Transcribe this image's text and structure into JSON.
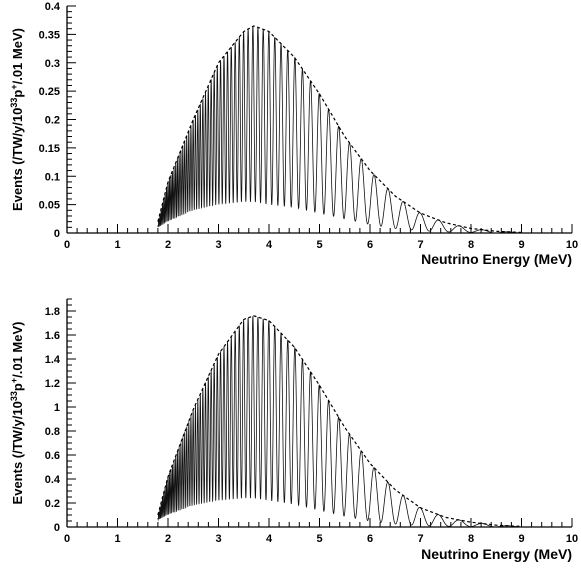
{
  "chart_data": [
    {
      "type": "line",
      "xlabel": "Neutrino Energy (MeV)",
      "ylabel": "Events (/TW/y/10^33p^+/.01 MeV)",
      "xlim": [
        0,
        10
      ],
      "ylim": [
        0,
        0.4
      ],
      "x_ticks": [
        "0",
        "1",
        "2",
        "3",
        "4",
        "5",
        "6",
        "7",
        "8",
        "9",
        "10"
      ],
      "y_ticks": [
        "0",
        "0.05",
        "0.1",
        "0.15",
        "0.2",
        "0.25",
        "0.3",
        "0.35",
        "0.4"
      ],
      "grid": false,
      "series": [
        {
          "style": "dashed envelope",
          "x": [
            1.8,
            2.0,
            2.5,
            3.0,
            3.5,
            3.7,
            4.0,
            4.5,
            5.0,
            5.5,
            6.0,
            6.5,
            7.0,
            7.5,
            8.0,
            8.5,
            9.0
          ],
          "y": [
            0.02,
            0.09,
            0.2,
            0.3,
            0.355,
            0.365,
            0.355,
            0.31,
            0.245,
            0.17,
            0.11,
            0.065,
            0.035,
            0.018,
            0.008,
            0.003,
            0.001
          ]
        },
        {
          "style": "oscillating spectrum",
          "x": [
            1.8,
            2.0,
            2.5,
            3.0,
            3.5,
            3.7,
            4.0,
            4.5,
            5.0,
            5.5,
            6.0,
            6.5,
            7.0,
            7.5,
            8.0,
            8.5,
            9.0
          ],
          "y_min": [
            0.01,
            0.02,
            0.04,
            0.05,
            0.055,
            0.055,
            0.05,
            0.045,
            0.035,
            0.025,
            0.015,
            0.008,
            0.004,
            0.002,
            0.001,
            0.0,
            0.0
          ]
        }
      ]
    },
    {
      "type": "line",
      "xlabel": "Neutrino Energy (MeV)",
      "ylabel": "Events (/TW/y/10^33p^+/.01 MeV)",
      "xlim": [
        0,
        10
      ],
      "ylim": [
        0,
        1.9
      ],
      "x_ticks": [
        "0",
        "1",
        "2",
        "3",
        "4",
        "5",
        "6",
        "7",
        "8",
        "9",
        "10"
      ],
      "y_ticks": [
        "0",
        "0.2",
        "0.4",
        "0.6",
        "0.8",
        "1",
        "1.2",
        "1.4",
        "1.6",
        "1.8"
      ],
      "grid": false,
      "series": [
        {
          "style": "dashed envelope",
          "x": [
            1.8,
            2.0,
            2.5,
            3.0,
            3.5,
            3.7,
            4.0,
            4.5,
            5.0,
            5.5,
            6.0,
            6.5,
            7.0,
            7.5,
            8.0,
            8.5,
            9.0
          ],
          "y": [
            0.1,
            0.42,
            0.98,
            1.44,
            1.73,
            1.76,
            1.72,
            1.5,
            1.18,
            0.83,
            0.53,
            0.31,
            0.16,
            0.08,
            0.04,
            0.015,
            0.005
          ]
        },
        {
          "style": "oscillating spectrum",
          "x": [
            1.8,
            2.0,
            2.5,
            3.0,
            3.5,
            3.7,
            4.0,
            4.5,
            5.0,
            5.5,
            6.0,
            6.5,
            7.0,
            7.5,
            8.0,
            8.5,
            9.0
          ],
          "y_min": [
            0.06,
            0.1,
            0.18,
            0.22,
            0.24,
            0.24,
            0.22,
            0.19,
            0.14,
            0.09,
            0.05,
            0.025,
            0.012,
            0.006,
            0.003,
            0.001,
            0.0
          ]
        }
      ]
    }
  ]
}
